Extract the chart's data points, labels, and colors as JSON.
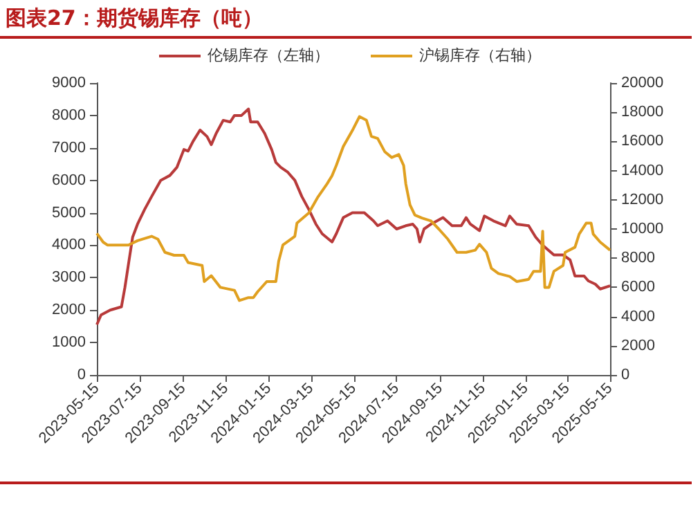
{
  "chart_data": {
    "type": "line",
    "title": "图表27：期货锡库存（吨）",
    "legend": "top",
    "grid": false,
    "marker": "none",
    "line_style": "solid",
    "xlim": [
      "2023-05-15",
      "2025-05-15"
    ],
    "xticks": [
      "2023-05-15",
      "2023-07-15",
      "2023-09-15",
      "2023-11-15",
      "2024-01-15",
      "2024-03-15",
      "2024-05-15",
      "2024-07-15",
      "2024-09-15",
      "2024-11-15",
      "2025-01-15",
      "2025-03-15",
      "2025-05-15"
    ],
    "ylim": [
      0,
      9000
    ],
    "yticks": [
      0,
      1000,
      2000,
      3000,
      4000,
      5000,
      6000,
      7000,
      8000,
      9000
    ],
    "y2lim": [
      0,
      20000
    ],
    "y2ticks": [
      0,
      2000,
      4000,
      6000,
      8000,
      10000,
      12000,
      14000,
      16000,
      18000,
      20000
    ],
    "series": [
      {
        "name": "伦锡库存（左轴）",
        "color": "#b83a3a",
        "x": [
          "2023-05-15",
          "2023-05-21",
          "2023-06-03",
          "2023-06-19",
          "2023-06-24",
          "2023-06-30",
          "2023-07-05",
          "2023-07-12",
          "2023-07-22",
          "2023-08-01",
          "2023-08-14",
          "2023-08-27",
          "2023-09-06",
          "2023-09-16",
          "2023-09-22",
          "2023-09-29",
          "2023-10-09",
          "2023-10-19",
          "2023-10-25",
          "2023-11-01",
          "2023-11-11",
          "2023-11-21",
          "2023-11-27",
          "2023-12-07",
          "2023-12-17",
          "2023-12-20",
          "2023-12-30",
          "2024-01-09",
          "2024-01-19",
          "2024-01-25",
          "2024-02-01",
          "2024-02-11",
          "2024-02-21",
          "2024-03-02",
          "2024-03-12",
          "2024-03-22",
          "2024-03-31",
          "2024-04-14",
          "2024-04-20",
          "2024-04-30",
          "2024-05-13",
          "2024-05-30",
          "2024-06-12",
          "2024-06-18",
          "2024-07-02",
          "2024-07-15",
          "2024-07-28",
          "2024-08-07",
          "2024-08-13",
          "2024-08-17",
          "2024-08-23",
          "2024-09-02",
          "2024-09-19",
          "2024-10-02",
          "2024-10-15",
          "2024-10-22",
          "2024-10-28",
          "2024-11-10",
          "2024-11-17",
          "2024-11-30",
          "2024-12-17",
          "2024-12-23",
          "2025-01-02",
          "2025-01-19",
          "2025-01-29",
          "2025-02-08",
          "2025-02-24",
          "2025-03-09",
          "2025-03-19",
          "2025-03-26",
          "2025-04-08",
          "2025-04-14",
          "2025-04-24",
          "2025-05-01",
          "2025-05-15"
        ],
        "values": [
          1550,
          1850,
          2000,
          2100,
          2700,
          3550,
          4250,
          4650,
          5100,
          5500,
          6000,
          6150,
          6400,
          6950,
          6900,
          7200,
          7550,
          7350,
          7100,
          7450,
          7850,
          7800,
          8000,
          8000,
          8200,
          7800,
          7800,
          7450,
          6950,
          6550,
          6400,
          6250,
          6000,
          5500,
          5100,
          4650,
          4350,
          4100,
          4350,
          4850,
          5000,
          5000,
          4750,
          4600,
          4750,
          4500,
          4600,
          4650,
          4500,
          4100,
          4500,
          4650,
          4850,
          4600,
          4600,
          4850,
          4650,
          4450,
          4900,
          4750,
          4600,
          4900,
          4650,
          4600,
          4250,
          4000,
          3700,
          3700,
          3550,
          3050,
          3050,
          2900,
          2800,
          2650,
          2750
        ]
      },
      {
        "name": "沪锡库存（右轴）",
        "color": "#e0a020",
        "axis": "y2",
        "x": [
          "2023-05-15",
          "2023-05-24",
          "2023-05-30",
          "2023-06-15",
          "2023-06-29",
          "2023-07-12",
          "2023-08-01",
          "2023-08-10",
          "2023-08-20",
          "2023-09-02",
          "2023-09-16",
          "2023-09-22",
          "2023-10-12",
          "2023-10-15",
          "2023-10-25",
          "2023-11-07",
          "2023-11-27",
          "2023-12-04",
          "2023-12-17",
          "2023-12-24",
          "2023-12-30",
          "2024-01-12",
          "2024-01-25",
          "2024-01-29",
          "2024-02-04",
          "2024-02-21",
          "2024-02-24",
          "2024-03-12",
          "2024-03-25",
          "2024-04-07",
          "2024-04-14",
          "2024-04-20",
          "2024-04-30",
          "2024-05-13",
          "2024-05-23",
          "2024-06-02",
          "2024-06-09",
          "2024-06-18",
          "2024-06-28",
          "2024-07-08",
          "2024-07-18",
          "2024-07-25",
          "2024-07-28",
          "2024-08-03",
          "2024-08-10",
          "2024-08-20",
          "2024-09-02",
          "2024-09-13",
          "2024-09-26",
          "2024-10-09",
          "2024-10-22",
          "2024-11-04",
          "2024-11-10",
          "2024-11-20",
          "2024-11-27",
          "2024-12-07",
          "2024-12-23",
          "2025-01-02",
          "2025-01-19",
          "2025-01-26",
          "2025-02-05",
          "2025-02-08",
          "2025-02-11",
          "2025-02-17",
          "2025-02-24",
          "2025-03-09",
          "2025-03-12",
          "2025-03-26",
          "2025-04-01",
          "2025-04-11",
          "2025-04-18",
          "2025-04-21",
          "2025-05-01",
          "2025-05-15"
        ],
        "values": [
          9700,
          9100,
          8900,
          8900,
          8900,
          9200,
          9500,
          9300,
          8400,
          8200,
          8200,
          7700,
          7500,
          6400,
          6800,
          6000,
          5800,
          5100,
          5300,
          5300,
          5700,
          6400,
          6400,
          7800,
          8900,
          9500,
          10400,
          11100,
          12200,
          13100,
          13650,
          14350,
          15650,
          16750,
          17700,
          17450,
          16350,
          16200,
          15300,
          14900,
          15100,
          14350,
          13100,
          11650,
          10950,
          10750,
          10550,
          10000,
          9300,
          8400,
          8400,
          8550,
          8950,
          8400,
          7300,
          6950,
          6750,
          6400,
          6550,
          7100,
          7100,
          9850,
          6000,
          6000,
          7100,
          7500,
          8400,
          8750,
          9650,
          10400,
          10400,
          9650,
          9100,
          8550
        ]
      }
    ]
  }
}
